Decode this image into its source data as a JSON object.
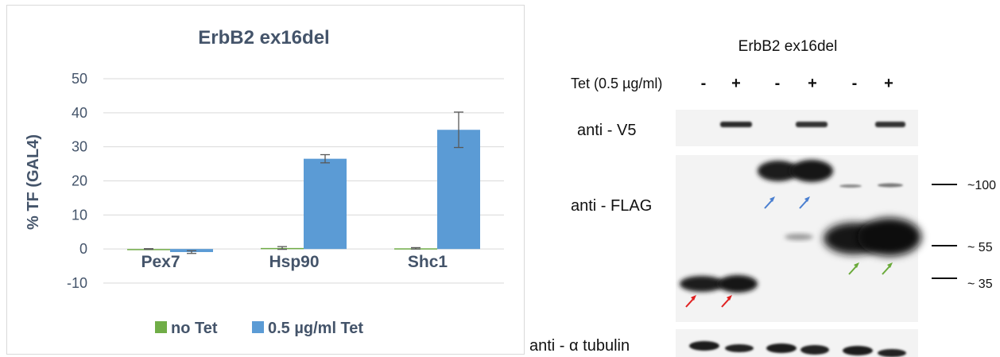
{
  "chart_data": {
    "type": "bar",
    "title": "ErbB2 ex16del",
    "xlabel": "",
    "ylabel": "% TF (GAL4)",
    "ylim": [
      -10,
      50
    ],
    "yticks": [
      -10,
      0,
      10,
      20,
      30,
      40,
      50
    ],
    "grid": true,
    "legend_position": "bottom",
    "categories": [
      "Pex7",
      "Hsp90",
      "Shc1"
    ],
    "series": [
      {
        "name": "no Tet",
        "color": "#70ad47",
        "values": [
          0.0,
          0.3,
          0.2
        ],
        "errors": [
          0.1,
          0.4,
          0.2
        ]
      },
      {
        "name": "0.5 µg/ml Tet",
        "color": "#5b9bd5",
        "values": [
          -0.9,
          26.5,
          35.0
        ],
        "errors": [
          0.4,
          1.2,
          5.2
        ]
      }
    ]
  },
  "western_blot": {
    "title": "ErbB2 ex16del",
    "treatment_label": "Tet (0.5 µg/ml)",
    "lane_signs": [
      "-",
      "+",
      "-",
      "+",
      "-",
      "+"
    ],
    "panels": [
      "anti - V5",
      "anti - FLAG",
      "anti - α tubulin"
    ],
    "markers": [
      "~100",
      "~ 55",
      "~ 35"
    ],
    "arrow_colors": [
      "#e02020",
      "#4a7fd0",
      "#6aaa3a"
    ]
  }
}
